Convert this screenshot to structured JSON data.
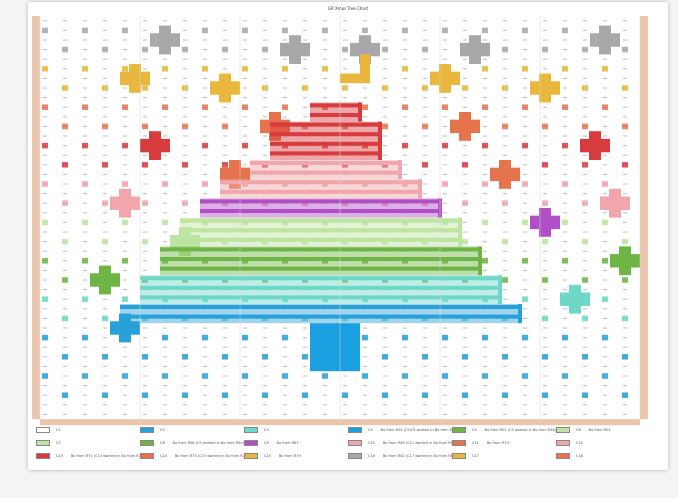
{
  "title": "GR Xmas Tree Chart",
  "grid": {
    "cols": 60,
    "rows": 42
  },
  "palette": {
    "bg": "#ffffff",
    "stitch": "#bcbcbc",
    "row_strip": "#ecc5ad",
    "gray": "#a8a8a8",
    "yellow": "#e9b73e",
    "orange": "#e5744d",
    "red": "#d73b3e",
    "pink": "#f0a6aa",
    "purple": "#b04fc6",
    "lightgreen": "#bde4a0",
    "green": "#6fb545",
    "teal": "#6ed8c8",
    "blue": "#27a1d8",
    "trunk": "#1a9fe0"
  },
  "legend": {
    "rows": [
      [
        {
          "code": "C1",
          "color": "#ffffff",
          "note": ""
        },
        {
          "code": "C2",
          "color": "#27a1d8",
          "note": ""
        },
        {
          "code": "C3",
          "color": "#6ed8c8",
          "note": ""
        },
        {
          "code": "C4",
          "color": "#1a9fe0",
          "note": "Bo from R44 (C5/C6 worked in Bo from R45)"
        },
        {
          "code": "C5",
          "color": "#6fb545",
          "note": "Bo from R51 (C3 worked in Bo from R46)"
        },
        {
          "code": "C6",
          "color": "#bde4a0",
          "note": "Bo from R54"
        }
      ],
      [
        {
          "code": "C7",
          "color": "#bde4a0",
          "note": ""
        },
        {
          "code": "C8",
          "color": "#6fb545",
          "note": "Bo from R58 (C9 worked in Bo from R60)"
        },
        {
          "code": "C9",
          "color": "#b04fc6",
          "note": "Bo from R63"
        },
        {
          "code": "C10",
          "color": "#f0a6aa",
          "note": "Bo from R66 (C11 worked in Bo from R68)"
        },
        {
          "code": "C11",
          "color": "#e5744d",
          "note": "Bo from R70"
        },
        {
          "code": "C12",
          "color": "#f0a6aa",
          "note": ""
        }
      ],
      [
        {
          "code": "C13",
          "color": "#d73b3e",
          "note": "Bo from R71 (C14 worked in Bo from R73)"
        },
        {
          "code": "C14",
          "color": "#e5744d",
          "note": "Bo from R75 (C15 worked in Bo from R77)"
        },
        {
          "code": "C15",
          "color": "#e9b73e",
          "note": "Bo from R79"
        },
        {
          "code": "C16",
          "color": "#a8a8a8",
          "note": "Bo from R82 (C17 worked in Bo from R84)"
        },
        {
          "code": "C17",
          "color": "#e9b73e",
          "note": ""
        },
        {
          "code": "C18",
          "color": "#e5744d",
          "note": ""
        }
      ]
    ]
  },
  "layer_note": "Chart is a stitch grid. Tree and cross motifs drawn from the rows/shapes specified here.",
  "tree": {
    "star_top_row": 4,
    "tiers": [
      {
        "start": 9,
        "end": 11,
        "l": 27,
        "r": 32,
        "color": "red"
      },
      {
        "start": 11,
        "end": 15,
        "l": 23,
        "r": 34,
        "color": "red"
      },
      {
        "start": 15,
        "end": 17,
        "l": 21,
        "r": 36,
        "color": "pink"
      },
      {
        "start": 17,
        "end": 19,
        "l": 18,
        "r": 38,
        "color": "pink"
      },
      {
        "start": 19,
        "end": 21,
        "l": 16,
        "r": 40,
        "color": "purple"
      },
      {
        "start": 21,
        "end": 24,
        "l": 14,
        "r": 42,
        "color": "lightgreen"
      },
      {
        "start": 24,
        "end": 27,
        "l": 12,
        "r": 44,
        "color": "green"
      },
      {
        "start": 27,
        "end": 30,
        "l": 10,
        "r": 46,
        "color": "teal"
      },
      {
        "start": 30,
        "end": 32,
        "l": 8,
        "r": 48,
        "color": "blue"
      }
    ],
    "trunk": {
      "start": 32,
      "end": 37,
      "l": 27,
      "r": 32
    }
  },
  "crosses": [
    {
      "col": 12,
      "row": 2,
      "color": "gray"
    },
    {
      "col": 25,
      "row": 3,
      "color": "gray"
    },
    {
      "col": 32,
      "row": 3,
      "color": "gray"
    },
    {
      "col": 43,
      "row": 3,
      "color": "gray"
    },
    {
      "col": 56,
      "row": 2,
      "color": "gray"
    },
    {
      "col": 9,
      "row": 6,
      "color": "yellow"
    },
    {
      "col": 18,
      "row": 7,
      "color": "yellow"
    },
    {
      "col": 40,
      "row": 6,
      "color": "yellow"
    },
    {
      "col": 50,
      "row": 7,
      "color": "yellow"
    },
    {
      "col": 23,
      "row": 11,
      "color": "orange"
    },
    {
      "col": 42,
      "row": 11,
      "color": "orange"
    },
    {
      "col": 11,
      "row": 13,
      "color": "red"
    },
    {
      "col": 55,
      "row": 13,
      "color": "red"
    },
    {
      "col": 19,
      "row": 16,
      "color": "orange"
    },
    {
      "col": 46,
      "row": 16,
      "color": "orange"
    },
    {
      "col": 8,
      "row": 19,
      "color": "pink"
    },
    {
      "col": 57,
      "row": 19,
      "color": "pink"
    },
    {
      "col": 50,
      "row": 21,
      "color": "purple"
    },
    {
      "col": 14,
      "row": 23,
      "color": "lightgreen"
    },
    {
      "col": 58,
      "row": 25,
      "color": "green"
    },
    {
      "col": 6,
      "row": 27,
      "color": "green"
    },
    {
      "col": 53,
      "row": 29,
      "color": "teal"
    },
    {
      "col": 8,
      "row": 32,
      "color": "blue"
    }
  ]
}
